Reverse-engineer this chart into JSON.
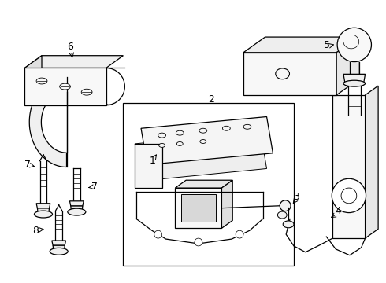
{
  "background_color": "#ffffff",
  "line_color": "#000000",
  "fig_width": 4.9,
  "fig_height": 3.6,
  "dpi": 100
}
